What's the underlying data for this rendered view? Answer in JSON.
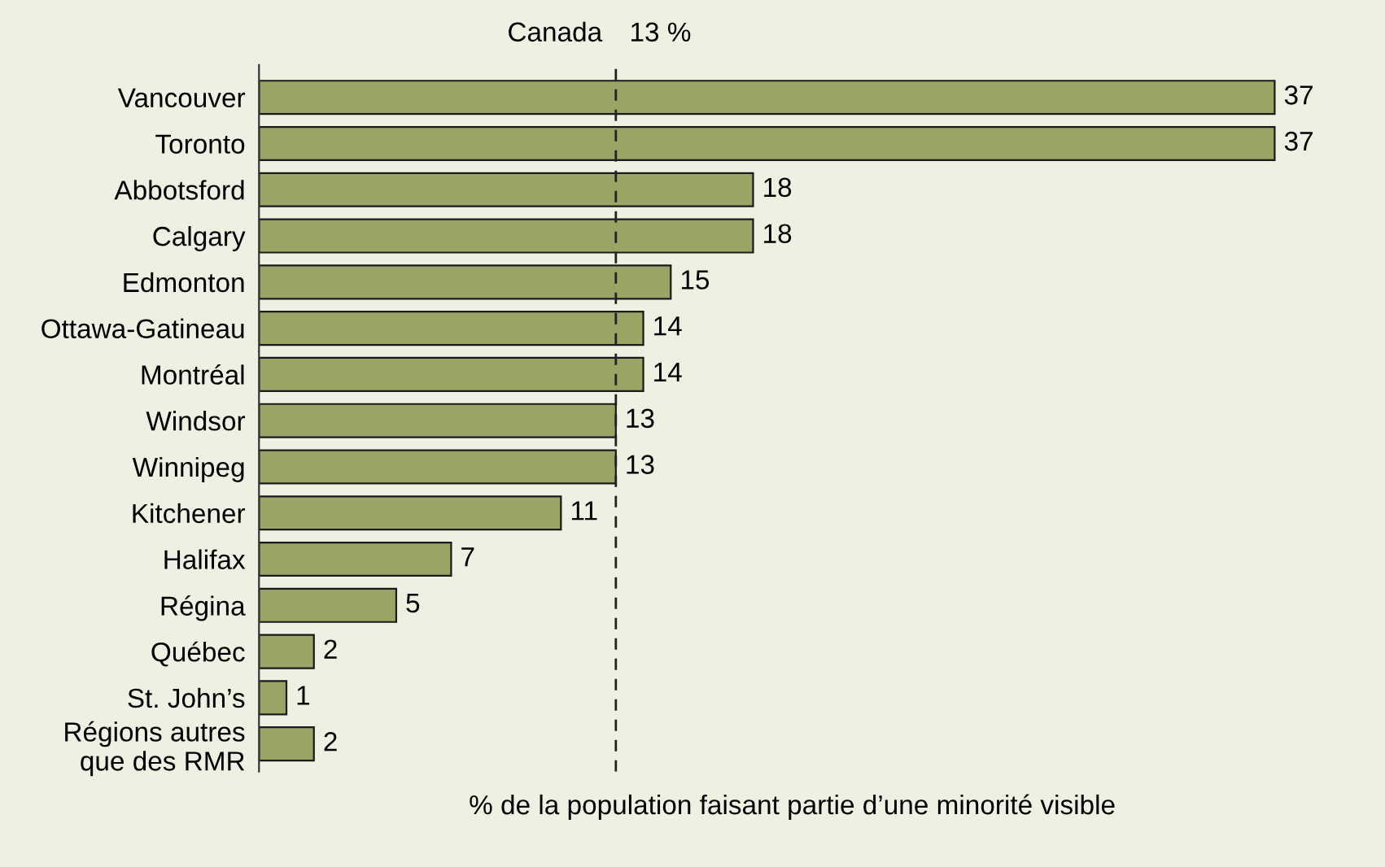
{
  "chart_data": {
    "type": "bar",
    "orientation": "horizontal",
    "xlabel": "% de la population faisant partie d’une minorité visible",
    "categories": [
      "Vancouver",
      "Toronto",
      "Abbotsford",
      "Calgary",
      "Edmonton",
      "Ottawa-Gatineau",
      "Montréal",
      "Windsor",
      "Winnipeg",
      "Kitchener",
      "Halifax",
      "Régina",
      "Québec",
      "St. John’s",
      "Régions autres\nque des RMR"
    ],
    "values": [
      37,
      37,
      18,
      18,
      15,
      14,
      14,
      13,
      13,
      11,
      7,
      5,
      2,
      1,
      2
    ],
    "color": "#9aa565",
    "data_labels": true,
    "grid": false,
    "ref_lines": [
      {
        "axis": "x",
        "value": 13,
        "label": "Canada",
        "line_style": "dashed",
        "color": "#222222"
      }
    ],
    "annotations": [
      "13 %"
    ]
  }
}
